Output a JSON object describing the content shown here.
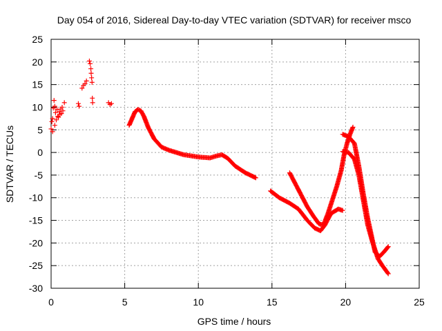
{
  "chart_data": {
    "type": "scatter",
    "title": "Day 054 of 2016, Sidereal Day-to-day VTEC variation (SDTVAR) for receiver msco",
    "xlabel": "GPS time / hours",
    "ylabel": "SDTVAR / TECUs",
    "xlim": [
      0,
      25
    ],
    "ylim": [
      -30,
      25
    ],
    "xticks": [
      "0",
      "5",
      "10",
      "15",
      "20",
      "25"
    ],
    "yticks": [
      "25",
      "20",
      "15",
      "10",
      "5",
      "0",
      "-5",
      "-10",
      "-15",
      "-20",
      "-25",
      "-30"
    ],
    "grid": true,
    "marker": "+",
    "color": "#ff0000",
    "series": [
      {
        "name": "early-scatter",
        "points": [
          [
            0.0,
            5.2
          ],
          [
            0.05,
            6.8
          ],
          [
            0.1,
            4.6
          ],
          [
            0.1,
            7.5
          ],
          [
            0.15,
            9.8
          ],
          [
            0.2,
            11.5
          ],
          [
            0.25,
            10.2
          ],
          [
            0.25,
            6.0
          ],
          [
            0.3,
            8.8
          ],
          [
            0.35,
            7.2
          ],
          [
            0.4,
            9.5
          ],
          [
            0.45,
            8.0
          ],
          [
            0.5,
            7.8
          ],
          [
            0.55,
            9.0
          ],
          [
            0.6,
            8.4
          ],
          [
            0.65,
            9.6
          ],
          [
            0.7,
            8.6
          ],
          [
            0.75,
            10.0
          ],
          [
            0.8,
            9.2
          ],
          [
            0.9,
            11.0
          ],
          [
            1.85,
            10.8
          ],
          [
            1.9,
            10.2
          ],
          [
            2.1,
            14.2
          ],
          [
            2.2,
            14.8
          ],
          [
            2.3,
            15.2
          ],
          [
            2.4,
            15.8
          ],
          [
            2.6,
            20.2
          ],
          [
            2.65,
            19.6
          ],
          [
            2.7,
            18.5
          ],
          [
            2.72,
            17.5
          ],
          [
            2.75,
            16.5
          ],
          [
            2.78,
            15.5
          ],
          [
            2.8,
            12.0
          ],
          [
            2.82,
            11.0
          ],
          [
            3.9,
            11.0
          ],
          [
            4.0,
            10.6
          ],
          [
            4.1,
            10.8
          ]
        ]
      },
      {
        "name": "track-1",
        "points": [
          [
            5.3,
            6.0
          ],
          [
            5.5,
            7.5
          ],
          [
            5.7,
            9.0
          ],
          [
            5.9,
            9.5
          ],
          [
            6.1,
            9.2
          ],
          [
            6.3,
            8.0
          ],
          [
            6.6,
            5.5
          ],
          [
            7.0,
            3.0
          ],
          [
            7.5,
            1.2
          ],
          [
            8.0,
            0.5
          ],
          [
            9.0,
            -0.5
          ],
          [
            10.0,
            -1.0
          ],
          [
            10.8,
            -1.2
          ],
          [
            11.2,
            -0.8
          ],
          [
            11.6,
            -0.5
          ],
          [
            12.0,
            -1.3
          ],
          [
            12.5,
            -3.0
          ],
          [
            13.2,
            -4.5
          ],
          [
            13.9,
            -5.6
          ]
        ]
      },
      {
        "name": "track-2",
        "points": [
          [
            14.9,
            -8.5
          ],
          [
            15.5,
            -10.0
          ],
          [
            16.2,
            -11.2
          ],
          [
            16.8,
            -12.5
          ],
          [
            17.4,
            -15.0
          ],
          [
            17.9,
            -16.7
          ],
          [
            18.3,
            -17.3
          ],
          [
            18.6,
            -16.0
          ],
          [
            19.0,
            -13.5
          ],
          [
            19.5,
            -12.5
          ],
          [
            19.8,
            -12.8
          ]
        ]
      },
      {
        "name": "track-3",
        "points": [
          [
            16.2,
            -4.5
          ],
          [
            16.6,
            -7.0
          ],
          [
            17.0,
            -9.5
          ],
          [
            17.4,
            -12.0
          ],
          [
            17.8,
            -14.0
          ],
          [
            18.2,
            -15.8
          ],
          [
            18.5,
            -16.0
          ],
          [
            18.8,
            -13.5
          ],
          [
            19.1,
            -10.5
          ],
          [
            19.4,
            -7.5
          ],
          [
            19.7,
            -4.0
          ],
          [
            19.9,
            -0.5
          ],
          [
            20.1,
            2.0
          ],
          [
            20.3,
            4.0
          ],
          [
            20.5,
            5.6
          ]
        ]
      },
      {
        "name": "track-4",
        "points": [
          [
            19.8,
            4.0
          ],
          [
            20.2,
            3.5
          ],
          [
            20.6,
            2.0
          ],
          [
            20.9,
            -3.0
          ],
          [
            21.2,
            -9.0
          ],
          [
            21.5,
            -14.5
          ],
          [
            21.8,
            -19.0
          ],
          [
            22.0,
            -22.0
          ],
          [
            22.3,
            -23.0
          ],
          [
            22.6,
            -22.0
          ],
          [
            22.9,
            -20.8
          ]
        ]
      },
      {
        "name": "track-5",
        "points": [
          [
            19.8,
            0.2
          ],
          [
            20.2,
            0.0
          ],
          [
            20.6,
            -1.5
          ],
          [
            20.9,
            -5.0
          ],
          [
            21.2,
            -10.5
          ],
          [
            21.5,
            -16.0
          ],
          [
            21.8,
            -19.5
          ],
          [
            22.0,
            -21.5
          ],
          [
            22.2,
            -23.5
          ],
          [
            22.5,
            -25.0
          ],
          [
            22.9,
            -26.8
          ]
        ]
      }
    ]
  }
}
